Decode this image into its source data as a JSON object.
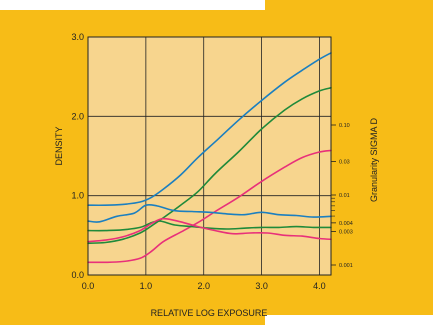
{
  "page": {
    "background": "#ffffff",
    "panel_color": "#f7bc17",
    "plot_bg": "#f7d58e",
    "grid_color": "#222222"
  },
  "chart_data": {
    "type": "line",
    "title": "",
    "xlabel": "RELATIVE LOG EXPOSURE",
    "ylabel": "DENSITY",
    "y2label": "Granularity SIGMA D",
    "xlim": [
      0.0,
      4.2
    ],
    "ylim": [
      0.0,
      3.0
    ],
    "x_ticks": [
      0.0,
      1.0,
      2.0,
      3.0,
      4.0
    ],
    "x_tick_labels": [
      "0.0",
      "1.0",
      "2.0",
      "3.0",
      "4.0"
    ],
    "y_ticks": [
      0.0,
      1.0,
      2.0,
      3.0
    ],
    "y_tick_labels": [
      "0.0",
      "1.0",
      "2.0",
      "3.0"
    ],
    "y2_scale": "log",
    "y2_ticks": [
      {
        "label": "0.10",
        "value": 0.1
      },
      {
        "label": "0.03",
        "value": 0.03
      },
      {
        "label": "0.01",
        "value": 0.01
      },
      {
        "label": "0.004",
        "value": 0.004
      },
      {
        "label": "0.003",
        "value": 0.003
      },
      {
        "label": "0.001",
        "value": 0.001
      }
    ],
    "y2_extra_minor": [
      0.005,
      0.006,
      0.007,
      0.008,
      0.009
    ],
    "grid": true,
    "series": [
      {
        "axis": "density",
        "color": "#1b7fc0",
        "x": [
          0.0,
          0.3,
          0.6,
          0.9,
          1.1,
          1.3,
          1.6,
          1.9,
          2.2,
          2.6,
          3.0,
          3.4,
          3.7,
          4.0,
          4.2
        ],
        "y": [
          0.88,
          0.88,
          0.89,
          0.92,
          0.98,
          1.08,
          1.26,
          1.48,
          1.68,
          1.95,
          2.2,
          2.43,
          2.58,
          2.72,
          2.8
        ]
      },
      {
        "axis": "density",
        "color": "#1f8a3a",
        "x": [
          0.0,
          0.3,
          0.6,
          0.9,
          1.1,
          1.3,
          1.6,
          1.9,
          2.2,
          2.6,
          3.0,
          3.4,
          3.7,
          4.0,
          4.2
        ],
        "y": [
          0.4,
          0.41,
          0.45,
          0.53,
          0.62,
          0.72,
          0.88,
          1.05,
          1.28,
          1.55,
          1.84,
          2.08,
          2.22,
          2.32,
          2.36
        ]
      },
      {
        "axis": "density",
        "color": "#e8307a",
        "x": [
          0.0,
          0.3,
          0.6,
          0.9,
          1.1,
          1.3,
          1.6,
          1.9,
          2.2,
          2.6,
          3.0,
          3.4,
          3.7,
          4.0,
          4.2
        ],
        "y": [
          0.16,
          0.16,
          0.17,
          0.21,
          0.3,
          0.42,
          0.54,
          0.66,
          0.8,
          0.98,
          1.18,
          1.36,
          1.48,
          1.55,
          1.57
        ]
      },
      {
        "axis": "granularity",
        "color": "#1b7fc0",
        "x": [
          0.0,
          0.2,
          0.5,
          0.8,
          1.0,
          1.2,
          1.5,
          1.8,
          2.1,
          2.4,
          2.7,
          3.0,
          3.3,
          3.6,
          3.9,
          4.2
        ],
        "y": [
          0.68,
          0.67,
          0.74,
          0.78,
          0.88,
          0.87,
          0.81,
          0.8,
          0.79,
          0.77,
          0.76,
          0.79,
          0.76,
          0.75,
          0.73,
          0.74
        ]
      },
      {
        "axis": "granularity",
        "color": "#1f8a3a",
        "x": [
          0.0,
          0.3,
          0.6,
          0.9,
          1.1,
          1.25,
          1.5,
          1.8,
          2.1,
          2.4,
          2.7,
          3.0,
          3.3,
          3.6,
          3.9,
          4.2
        ],
        "y": [
          0.56,
          0.56,
          0.57,
          0.6,
          0.66,
          0.68,
          0.63,
          0.61,
          0.59,
          0.58,
          0.59,
          0.6,
          0.6,
          0.61,
          0.6,
          0.6
        ]
      },
      {
        "axis": "granularity",
        "color": "#e8307a",
        "x": [
          0.0,
          0.3,
          0.6,
          0.9,
          1.1,
          1.3,
          1.6,
          1.9,
          2.2,
          2.5,
          2.8,
          3.1,
          3.4,
          3.7,
          4.0,
          4.2
        ],
        "y": [
          0.42,
          0.44,
          0.48,
          0.56,
          0.65,
          0.71,
          0.67,
          0.61,
          0.56,
          0.52,
          0.53,
          0.53,
          0.5,
          0.49,
          0.46,
          0.45
        ]
      }
    ]
  }
}
